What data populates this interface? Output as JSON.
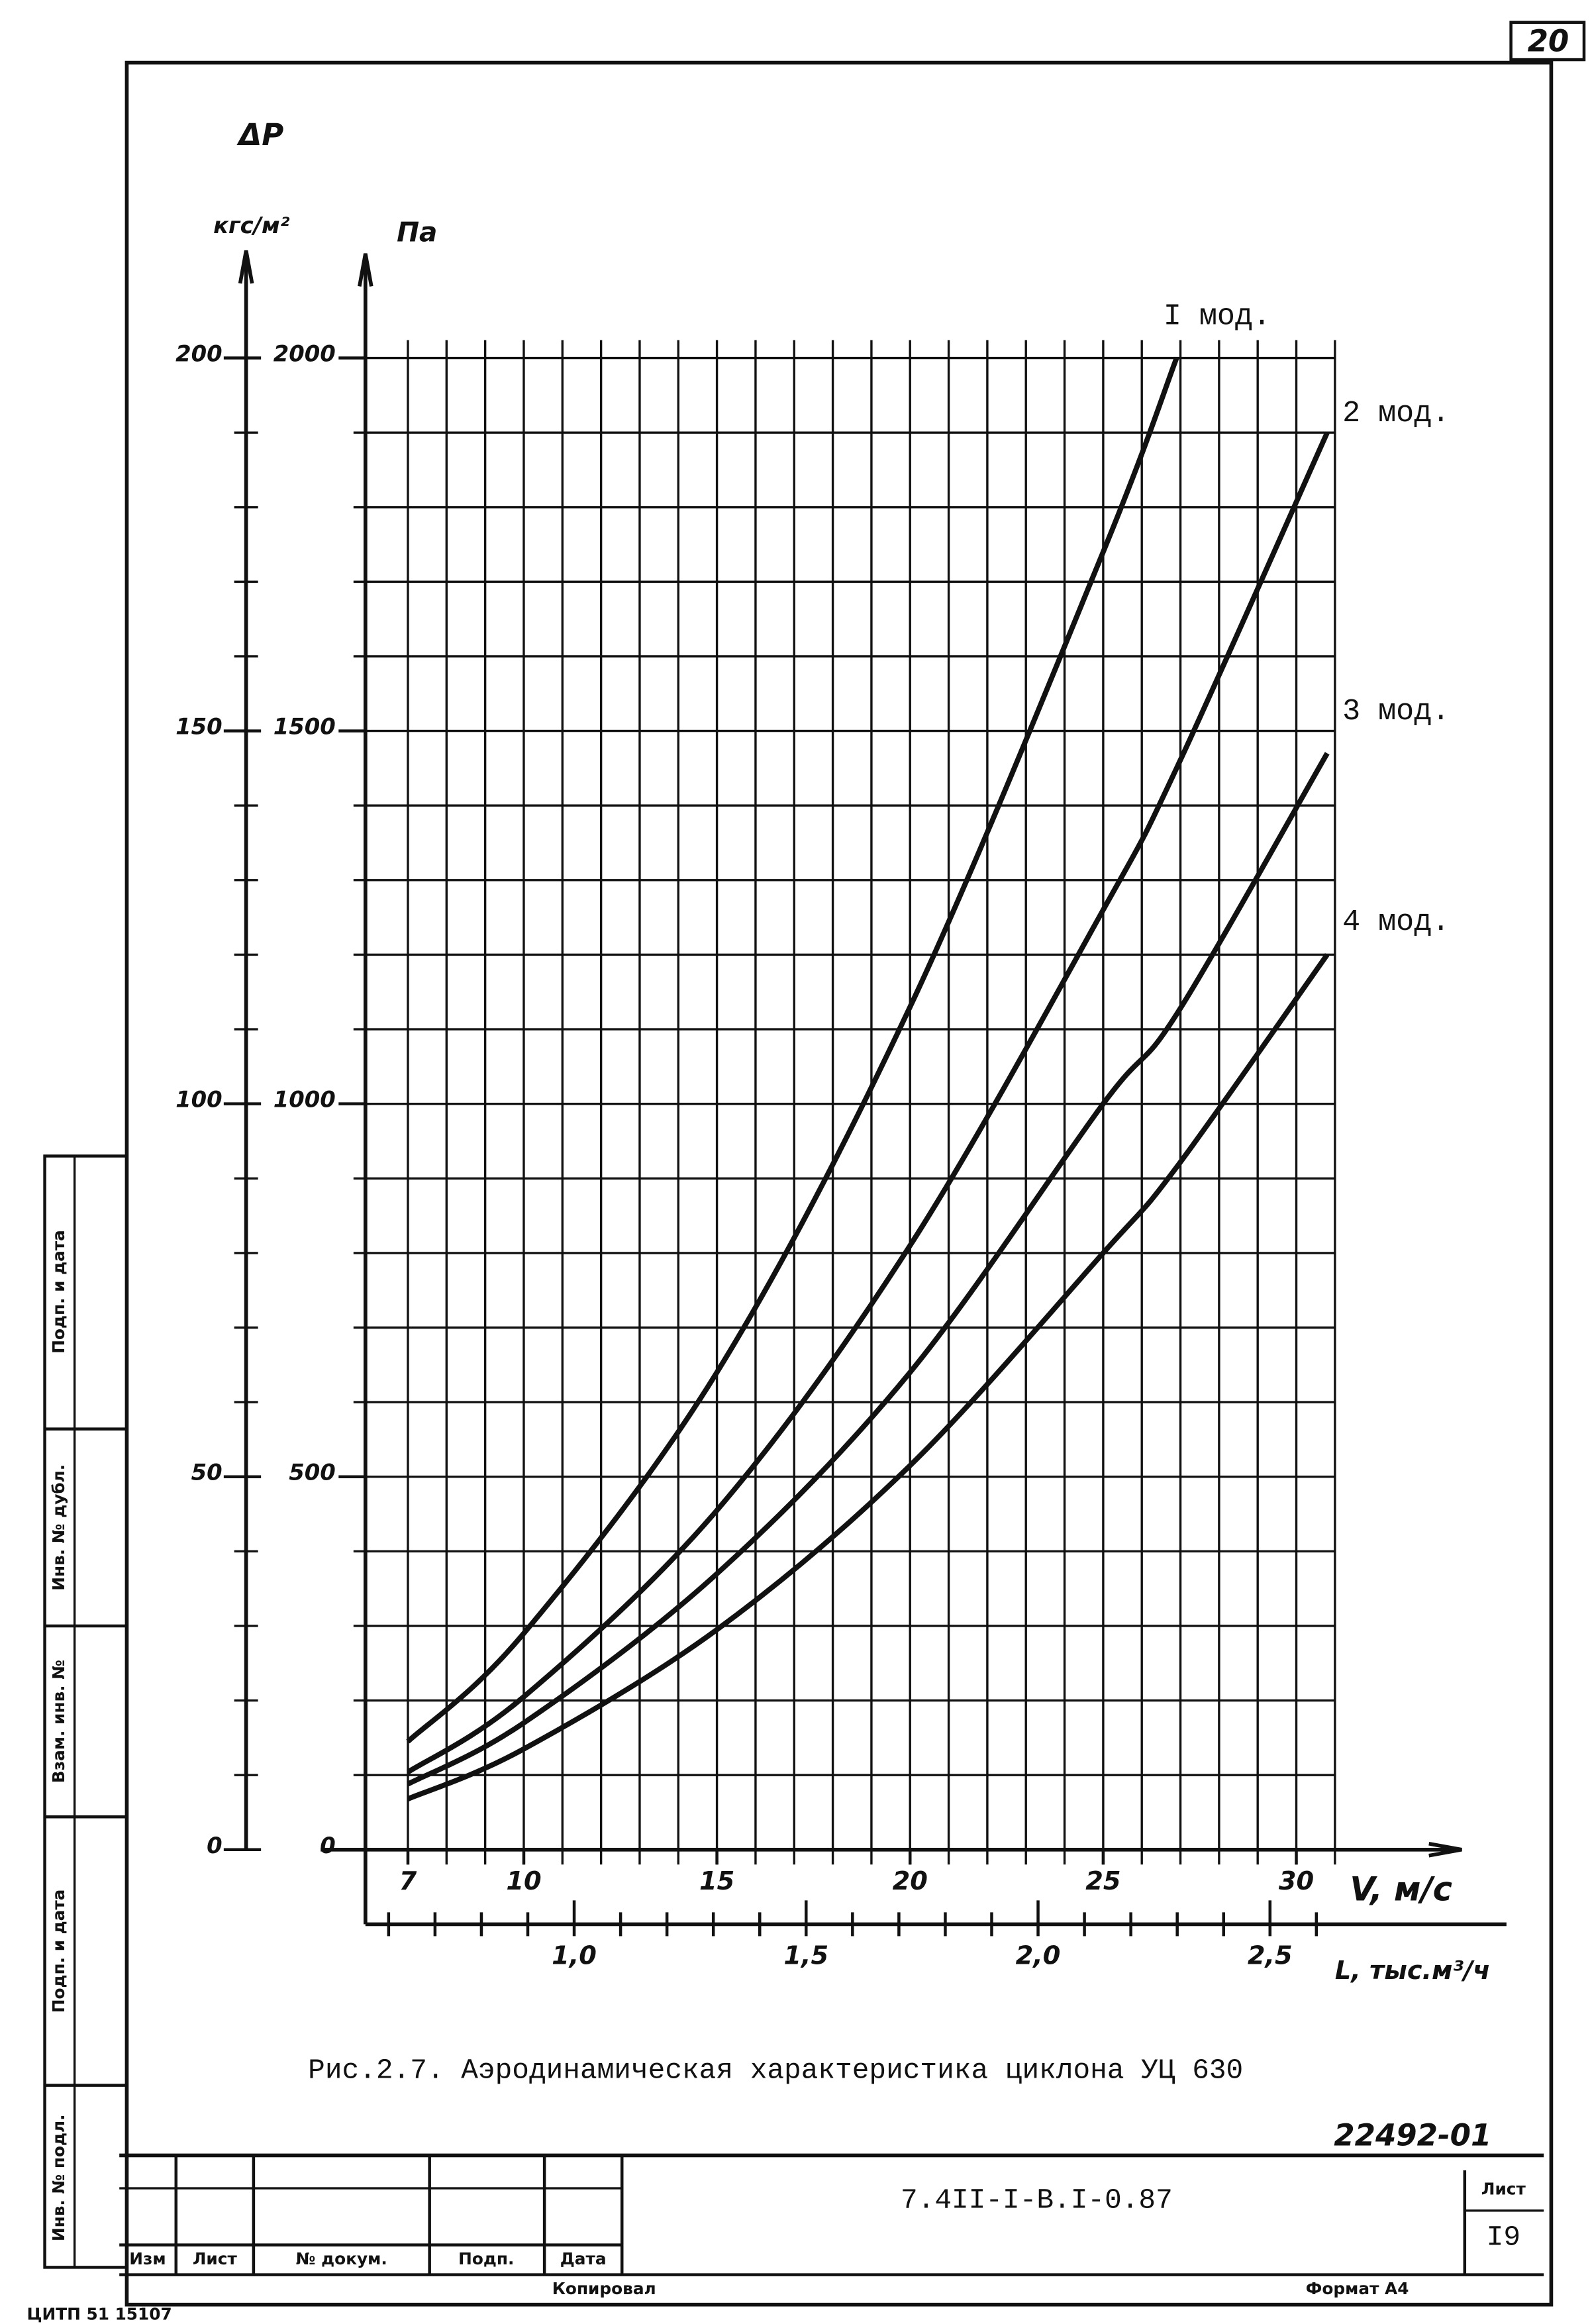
{
  "chart_data": {
    "type": "line",
    "y_label": "ΔP",
    "y_unit": "Па",
    "y2_unit": "кгс/м²",
    "x_label": "V, м/с",
    "x2_label": "L, тыс.м³/ч",
    "caption": "Рис.2.7. Аэродинамическая характеристика циклона УЦ 630",
    "x": [
      7,
      10,
      15,
      20,
      25,
      26.9,
      30.8
    ],
    "series": [
      {
        "name": "I мод.",
        "color": "#000000",
        "values": [
          145,
          290,
          640,
          1130,
          1740,
          2000,
          null
        ]
      },
      {
        "name": "2 мод.",
        "color": "#000000",
        "values": [
          104,
          205,
          455,
          810,
          1260,
          1450,
          1900
        ]
      },
      {
        "name": "3 мод.",
        "color": "#000000",
        "values": [
          88,
          170,
          370,
          640,
          1000,
          1120,
          1470
        ]
      },
      {
        "name": "4 мод.",
        "color": "#000000",
        "values": [
          68,
          135,
          295,
          515,
          800,
          915,
          1200
        ]
      }
    ],
    "xlim": [
      5.9,
      31
    ],
    "xticks": [
      7,
      10,
      15,
      20,
      25,
      30
    ],
    "xgrid": [
      7,
      8,
      9,
      10,
      11,
      12,
      13,
      14,
      15,
      16,
      17,
      18,
      19,
      20,
      21,
      22,
      23,
      24,
      25,
      26,
      27,
      28,
      29,
      30,
      31
    ],
    "x2lim": [
      0.55,
      2.64
    ],
    "x2ticks": [
      {
        "value": 1.0,
        "label": "1,0"
      },
      {
        "value": 1.5,
        "label": "1,5"
      },
      {
        "value": 2.0,
        "label": "2,0"
      },
      {
        "value": 2.5,
        "label": "2,5"
      }
    ],
    "x2minor": [
      0.6,
      0.7,
      0.8,
      0.9,
      1.1,
      1.2,
      1.3,
      1.4,
      1.6,
      1.7,
      1.8,
      1.9,
      2.1,
      2.2,
      2.3,
      2.4,
      2.6
    ],
    "ylim": [
      0,
      2000
    ],
    "yticks": [
      0,
      500,
      1000,
      1500,
      2000
    ],
    "ygrid": [
      100,
      200,
      300,
      400,
      500,
      600,
      700,
      800,
      900,
      1000,
      1100,
      1200,
      1300,
      1400,
      1500,
      1600,
      1700,
      1800,
      1900,
      2000
    ],
    "y2lim": [
      0,
      200
    ],
    "y2ticks": [
      0,
      50,
      100,
      150,
      200
    ],
    "grid": true
  },
  "sheet": {
    "page_number": "20",
    "archive_number": "22492-01",
    "designation": "7.4II-I-B.I-0.87",
    "sheet_label": "Лист",
    "sheet_number": "I9",
    "columns": [
      "Изм",
      "Лист",
      "№ докум.",
      "Подп.",
      "Дата"
    ],
    "copied": "Копировал",
    "format": "Формат А4",
    "stamp": "ЦИТП   51  15107",
    "side": [
      "Инв. № подл.",
      "Подп. и дата",
      "Взам. инв. №",
      "Инв. № дубл.",
      "Подп. и дата"
    ]
  }
}
